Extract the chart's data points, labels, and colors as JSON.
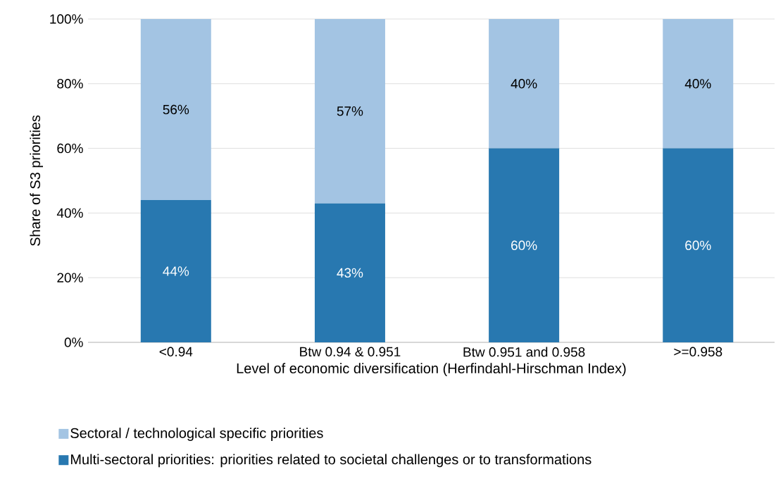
{
  "chart_data": {
    "type": "bar",
    "stacked": true,
    "categories": [
      "<0.94",
      "Btw 0.94 & 0.951",
      "Btw 0.951 and 0.958",
      ">=0.958"
    ],
    "xlabel": "Level of economic diversification (Herfindahl-Hirschman Index)",
    "ylabel": "Share of S3 priorities",
    "series": [
      {
        "name": "Multi-sectoral priorities: priorities related to societal challenges or to transformations",
        "color": "#2878b0",
        "values": [
          44,
          43,
          60,
          60
        ],
        "value_labels": [
          "44%",
          "43%",
          "60%",
          "60%"
        ]
      },
      {
        "name": "Sectoral / technological specific priorities",
        "color": "#a3c4e3",
        "values": [
          56,
          57,
          40,
          40
        ],
        "value_labels": [
          "56%",
          "57%",
          "40%",
          "40%"
        ]
      }
    ],
    "ylim": [
      0,
      100
    ],
    "yticks": [
      {
        "value": 0,
        "label": "0%"
      },
      {
        "value": 20,
        "label": "20%"
      },
      {
        "value": 40,
        "label": "40%"
      },
      {
        "value": 60,
        "label": "60%"
      },
      {
        "value": 80,
        "label": "80%"
      },
      {
        "value": 100,
        "label": "100%"
      }
    ],
    "grid": "y",
    "legend": "bottom"
  }
}
